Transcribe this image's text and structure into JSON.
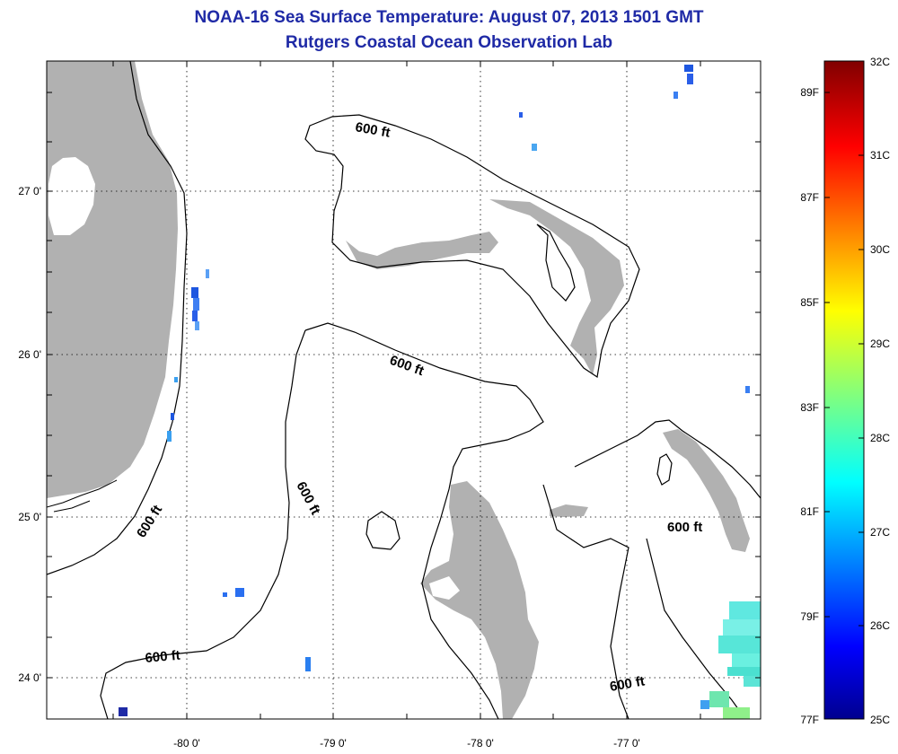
{
  "header": {
    "title": "NOAA-16 Sea Surface Temperature:  August 07, 2013 1501 GMT",
    "subtitle": "Rutgers Coastal Ocean Observation Lab"
  },
  "map": {
    "lat_labels": [
      "27 0'",
      "26 0'",
      "25 0'",
      "24 0'"
    ],
    "lon_labels": [
      "-80 0'",
      "-79 0'",
      "-78 0'",
      "-77 0'"
    ],
    "contour_label": "600 ft",
    "colors": {
      "land": "#b1b1b1",
      "contour": "#000000",
      "grid": "#000000"
    }
  },
  "colorbar": {
    "fahrenheit": [
      "89F",
      "87F",
      "85F",
      "83F",
      "81F",
      "79F",
      "77F"
    ],
    "celsius": [
      "32C",
      "31C",
      "30C",
      "29C",
      "28C",
      "27C",
      "26C",
      "25C"
    ],
    "colormap": "jet",
    "range_c": [
      25,
      32
    ]
  }
}
